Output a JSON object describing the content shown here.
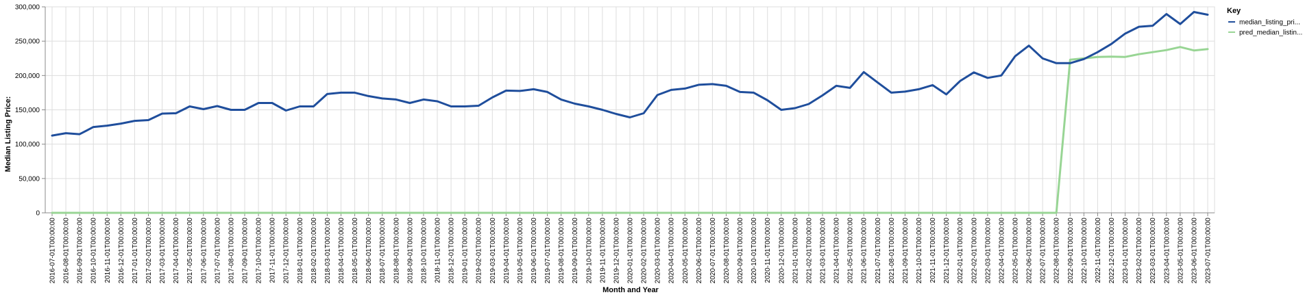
{
  "chart_data": {
    "type": "line",
    "xlabel": "Month and Year",
    "ylabel": "Median Listing Price:",
    "ylim": [
      0,
      300000
    ],
    "y_ticks": [
      0,
      50000,
      100000,
      150000,
      200000,
      250000,
      300000
    ],
    "y_tick_labels": [
      "0",
      "50,000",
      "100,000",
      "150,000",
      "200,000",
      "250,000",
      "300,000"
    ],
    "grid": true,
    "legend": {
      "title": "Key",
      "placement": "top-right"
    },
    "categories": [
      "2016-07-01T00:00:00",
      "2016-08-01T00:00:00",
      "2016-09-01T00:00:00",
      "2016-10-01T00:00:00",
      "2016-11-01T00:00:00",
      "2016-12-01T00:00:00",
      "2017-01-01T00:00:00",
      "2017-02-01T00:00:00",
      "2017-03-01T00:00:00",
      "2017-04-01T00:00:00",
      "2017-05-01T00:00:00",
      "2017-06-01T00:00:00",
      "2017-07-01T00:00:00",
      "2017-08-01T00:00:00",
      "2017-09-01T00:00:00",
      "2017-10-01T00:00:00",
      "2017-11-01T00:00:00",
      "2017-12-01T00:00:00",
      "2018-01-01T00:00:00",
      "2018-02-01T00:00:00",
      "2018-03-01T00:00:00",
      "2018-04-01T00:00:00",
      "2018-05-01T00:00:00",
      "2018-06-01T00:00:00",
      "2018-07-01T00:00:00",
      "2018-08-01T00:00:00",
      "2018-09-01T00:00:00",
      "2018-10-01T00:00:00",
      "2018-11-01T00:00:00",
      "2018-12-01T00:00:00",
      "2019-01-01T00:00:00",
      "2019-02-01T00:00:00",
      "2019-03-01T00:00:00",
      "2019-04-01T00:00:00",
      "2019-05-01T00:00:00",
      "2019-06-01T00:00:00",
      "2019-07-01T00:00:00",
      "2019-08-01T00:00:00",
      "2019-09-01T00:00:00",
      "2019-10-01T00:00:00",
      "2019-11-01T00:00:00",
      "2019-12-01T00:00:00",
      "2020-01-01T00:00:00",
      "2020-02-01T00:00:00",
      "2020-03-01T00:00:00",
      "2020-04-01T00:00:00",
      "2020-05-01T00:00:00",
      "2020-06-01T00:00:00",
      "2020-07-01T00:00:00",
      "2020-08-01T00:00:00",
      "2020-09-01T00:00:00",
      "2020-10-01T00:00:00",
      "2020-11-01T00:00:00",
      "2020-12-01T00:00:00",
      "2021-01-01T00:00:00",
      "2021-02-01T00:00:00",
      "2021-03-01T00:00:00",
      "2021-04-01T00:00:00",
      "2021-05-01T00:00:00",
      "2021-06-01T00:00:00",
      "2021-07-01T00:00:00",
      "2021-08-01T00:00:00",
      "2021-09-01T00:00:00",
      "2021-10-01T00:00:00",
      "2021-11-01T00:00:00",
      "2021-12-01T00:00:00",
      "2022-01-01T00:00:00",
      "2022-02-01T00:00:00",
      "2022-03-01T00:00:00",
      "2022-04-01T00:00:00",
      "2022-05-01T00:00:00",
      "2022-06-01T00:00:00",
      "2022-07-01T00:00:00",
      "2022-08-01T00:00:00",
      "2022-09-01T00:00:00",
      "2022-10-01T00:00:00",
      "2022-11-01T00:00:00",
      "2022-12-01T00:00:00",
      "2023-01-01T00:00:00",
      "2023-02-01T00:00:00",
      "2023-03-01T00:00:00",
      "2023-04-01T00:00:00",
      "2023-05-01T00:00:00",
      "2023-06-01T00:00:00",
      "2023-07-01T00:00:00"
    ],
    "series": [
      {
        "name": "median_listing_pri...",
        "color": "#1f4e9c",
        "values": [
          112500,
          116000,
          114500,
          125000,
          127000,
          130000,
          134000,
          135000,
          144500,
          145000,
          155000,
          151000,
          155500,
          150000,
          150000,
          160000,
          160000,
          149000,
          155000,
          155000,
          173000,
          175000,
          175000,
          170000,
          166500,
          165000,
          160000,
          165000,
          162500,
          155000,
          155000,
          156000,
          168000,
          178000,
          177500,
          180000,
          176000,
          165000,
          159000,
          155000,
          150000,
          144000,
          139000,
          145000,
          171500,
          179000,
          181000,
          186500,
          187500,
          185000,
          176000,
          175000,
          164000,
          150000,
          152500,
          158500,
          171000,
          185000,
          182000,
          205000,
          190000,
          175000,
          176500,
          180000,
          186000,
          172500,
          192000,
          204500,
          196500,
          200000,
          228000,
          243500,
          225000,
          218000,
          218000,
          224000,
          234000,
          246000,
          261000,
          271000,
          272500,
          289500,
          275000,
          292500,
          288500
        ]
      },
      {
        "name": "pred_median_listin...",
        "color": "#98d594",
        "values": [
          0,
          0,
          0,
          0,
          0,
          0,
          0,
          0,
          0,
          0,
          0,
          0,
          0,
          0,
          0,
          0,
          0,
          0,
          0,
          0,
          0,
          0,
          0,
          0,
          0,
          0,
          0,
          0,
          0,
          0,
          0,
          0,
          0,
          0,
          0,
          0,
          0,
          0,
          0,
          0,
          0,
          0,
          0,
          0,
          0,
          0,
          0,
          0,
          0,
          0,
          0,
          0,
          0,
          0,
          0,
          0,
          0,
          0,
          0,
          0,
          0,
          0,
          0,
          0,
          0,
          0,
          0,
          0,
          0,
          0,
          0,
          0,
          0,
          0,
          223000,
          225000,
          227000,
          227500,
          227000,
          231000,
          234000,
          237000,
          241500,
          236500,
          238500
        ]
      }
    ]
  }
}
